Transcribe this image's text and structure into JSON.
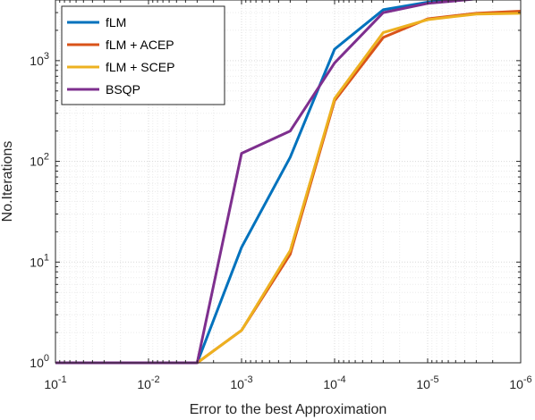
{
  "chart_data": {
    "type": "line",
    "xlabel": "Error to the best Approximation",
    "ylabel": "No.Iterations",
    "x_scale": "log",
    "y_scale": "log",
    "x_reversed": true,
    "xlim": [
      0.1,
      1e-06
    ],
    "ylim": [
      1,
      4000
    ],
    "grid": true,
    "legend_position": "top-left",
    "x_ticks": [
      {
        "value": 0.1,
        "base": "10",
        "exp": "-1"
      },
      {
        "value": 0.01,
        "base": "10",
        "exp": "-2"
      },
      {
        "value": 0.001,
        "base": "10",
        "exp": "-3"
      },
      {
        "value": 0.0001,
        "base": "10",
        "exp": "-4"
      },
      {
        "value": 1e-05,
        "base": "10",
        "exp": "-5"
      },
      {
        "value": 1e-06,
        "base": "10",
        "exp": "-6"
      }
    ],
    "y_ticks": [
      {
        "value": 1,
        "base": "10",
        "exp": "0"
      },
      {
        "value": 10,
        "base": "10",
        "exp": "1"
      },
      {
        "value": 100,
        "base": "10",
        "exp": "2"
      },
      {
        "value": 1000,
        "base": "10",
        "exp": "3"
      }
    ],
    "series": [
      {
        "name": "fLM",
        "color": "#0072BD",
        "points": [
          [
            0.1,
            1
          ],
          [
            0.01,
            1
          ],
          [
            0.003,
            1
          ],
          [
            0.001,
            14
          ],
          [
            0.0003,
            110
          ],
          [
            0.0001,
            1300
          ],
          [
            3e-05,
            3200
          ],
          [
            1e-05,
            3800
          ],
          [
            3e-06,
            4100
          ],
          [
            1e-06,
            4200
          ]
        ]
      },
      {
        "name": "fLM + ACEP",
        "color": "#D95319",
        "points": [
          [
            0.1,
            1
          ],
          [
            0.01,
            1
          ],
          [
            0.003,
            1
          ],
          [
            0.001,
            2.1
          ],
          [
            0.0003,
            12
          ],
          [
            0.0001,
            400
          ],
          [
            3e-05,
            1700
          ],
          [
            1e-05,
            2600
          ],
          [
            3e-06,
            2950
          ],
          [
            1e-06,
            3100
          ]
        ]
      },
      {
        "name": "fLM + SCEP",
        "color": "#EDB120",
        "points": [
          [
            0.1,
            1
          ],
          [
            0.01,
            1
          ],
          [
            0.003,
            1
          ],
          [
            0.001,
            2.1
          ],
          [
            0.0003,
            13
          ],
          [
            0.0001,
            420
          ],
          [
            3e-05,
            1900
          ],
          [
            1e-05,
            2550
          ],
          [
            3e-06,
            2900
          ],
          [
            1e-06,
            2950
          ]
        ]
      },
      {
        "name": "BSQP",
        "color": "#7E2F8E",
        "points": [
          [
            0.1,
            1
          ],
          [
            0.01,
            1
          ],
          [
            0.003,
            1
          ],
          [
            0.001,
            120
          ],
          [
            0.0003,
            200
          ],
          [
            0.0001,
            950
          ],
          [
            3e-05,
            3000
          ],
          [
            1e-05,
            3700
          ],
          [
            3e-06,
            4100
          ],
          [
            1e-06,
            4200
          ]
        ]
      }
    ]
  }
}
